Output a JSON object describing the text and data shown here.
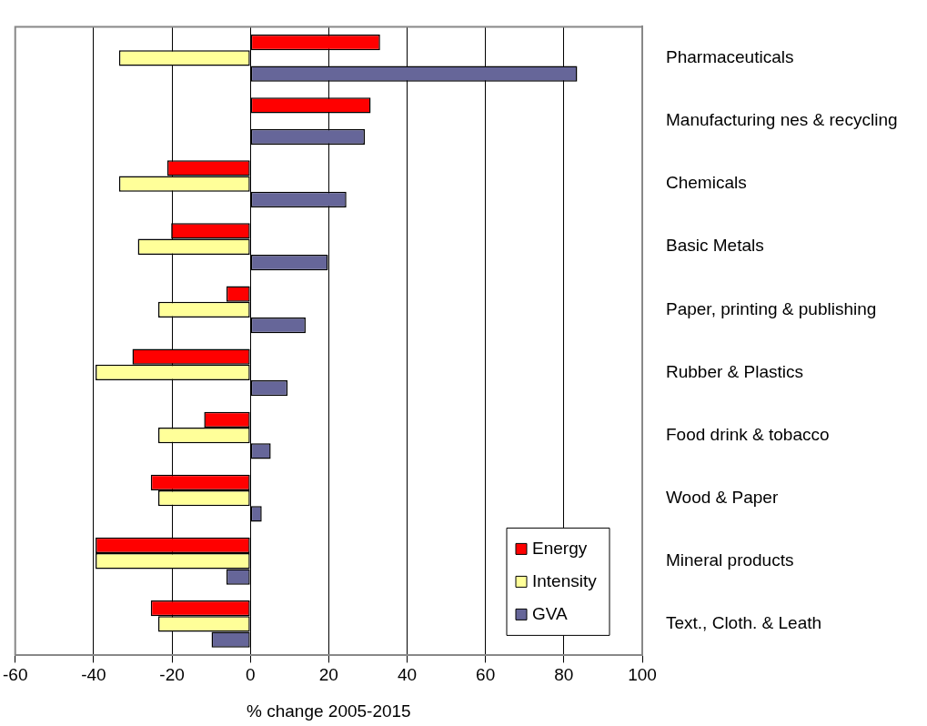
{
  "chart_data": {
    "type": "bar",
    "orientation": "horizontal",
    "xlabel": "% change 2005-2015",
    "categories": [
      "Pharmaceuticals",
      "Manufacturing nes & recycling",
      "Chemicals",
      "Basic Metals",
      "Paper, printing & publishing",
      "Rubber & Plastics",
      "Food drink & tobacco",
      "Wood & Paper",
      "Mineral products",
      "Text., Cloth. & Leath"
    ],
    "series": [
      {
        "name": "Energy",
        "color": "#ff0000",
        "values": [
          33.1,
          30.7,
          -21.2,
          -20.2,
          -6.1,
          -30.1,
          -11.8,
          -25.4,
          -39.5,
          -25.4
        ]
      },
      {
        "name": "Intensity",
        "color": "#ffff99",
        "values": [
          -33.5,
          null,
          -33.5,
          -28.7,
          -23.5,
          -39.5,
          -23.5,
          -23.5,
          -39.5,
          -23.5
        ]
      },
      {
        "name": "GVA",
        "color": "#666699",
        "values": [
          83.4,
          29.2,
          24.5,
          19.8,
          14.1,
          9.5,
          5.2,
          2.9,
          -6.1,
          -9.9
        ]
      }
    ],
    "xlim": [
      -60,
      100
    ],
    "xticks": [
      -60,
      -40,
      -20,
      0,
      20,
      40,
      60,
      80,
      100
    ],
    "grid": "x",
    "legend": "bottom right"
  }
}
